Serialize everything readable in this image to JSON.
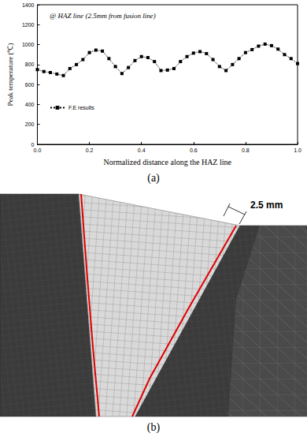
{
  "chart_data": {
    "type": "line",
    "annotation": "@ HAZ line (2.5mm from fusion line)",
    "x_label": "Normalized distance along the HAZ line",
    "y_label": "Peak temperature (℃)",
    "x": [
      0,
      0.025,
      0.05,
      0.075,
      0.1,
      0.125,
      0.15,
      0.175,
      0.2,
      0.225,
      0.25,
      0.275,
      0.3,
      0.325,
      0.35,
      0.375,
      0.4,
      0.425,
      0.45,
      0.475,
      0.5,
      0.525,
      0.55,
      0.575,
      0.6,
      0.625,
      0.65,
      0.675,
      0.7,
      0.725,
      0.75,
      0.775,
      0.8,
      0.825,
      0.85,
      0.875,
      0.9,
      0.925,
      0.95,
      0.975,
      1.0
    ],
    "series": [
      {
        "name": "F.E results",
        "color": "#000000",
        "marker": "square",
        "line_style": "dotted",
        "values": [
          750,
          730,
          720,
          705,
          690,
          760,
          800,
          850,
          920,
          945,
          935,
          860,
          780,
          710,
          770,
          840,
          880,
          870,
          830,
          740,
          745,
          760,
          830,
          880,
          915,
          930,
          910,
          850,
          780,
          740,
          800,
          860,
          920,
          950,
          985,
          1005,
          990,
          955,
          900,
          860,
          810
        ]
      }
    ],
    "xlim": [
      0,
      1
    ],
    "xticks": [
      {
        "value": 0,
        "label": "0.0"
      },
      0.2,
      0.4,
      0.6,
      0.8,
      {
        "value": 1,
        "label": "1.0"
      }
    ],
    "ylim": [
      0,
      1400
    ],
    "yticks": [
      0,
      200,
      400,
      600,
      800,
      1000,
      1200,
      1400
    ],
    "legend": "upper left",
    "grid": false
  },
  "panel_labels": [
    "(a)",
    "(b)"
  ],
  "diagram": {
    "annotation": "2.5 mm"
  }
}
